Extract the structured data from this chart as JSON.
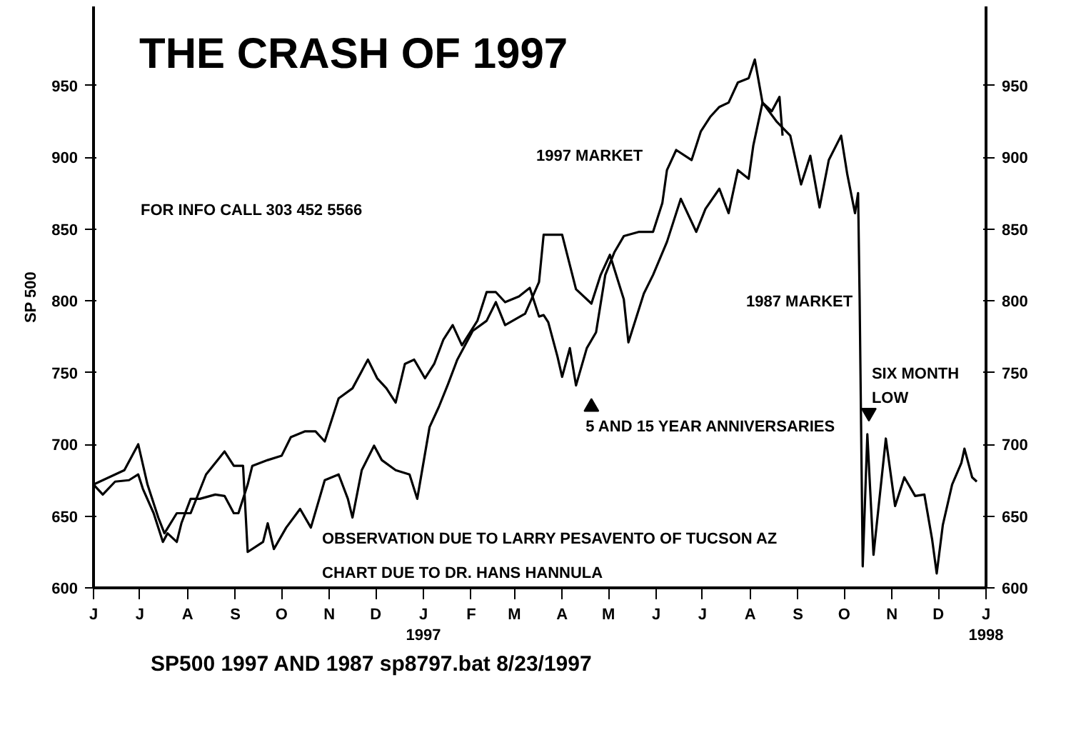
{
  "chart_data": {
    "type": "line",
    "title": "THE CRASH OF 1997",
    "ylabel": "SP 500",
    "xlim": [
      "1996-06-01",
      "1998-01-01"
    ],
    "xticks": [
      {
        "value": "1996-06-01",
        "label": "J"
      },
      {
        "value": "1996-07-01",
        "label": "J"
      },
      {
        "value": "1996-08-01",
        "label": "A"
      },
      {
        "value": "1996-09-01",
        "label": "S"
      },
      {
        "value": "1996-10-01",
        "label": "O"
      },
      {
        "value": "1996-11-01",
        "label": "N"
      },
      {
        "value": "1996-12-01",
        "label": "D"
      },
      {
        "value": "1997-01-01",
        "label": "J\n1997"
      },
      {
        "value": "1997-02-01",
        "label": "F"
      },
      {
        "value": "1997-03-01",
        "label": "M"
      },
      {
        "value": "1997-04-01",
        "label": "A"
      },
      {
        "value": "1997-05-01",
        "label": "M"
      },
      {
        "value": "1997-06-01",
        "label": "J"
      },
      {
        "value": "1997-07-01",
        "label": "J"
      },
      {
        "value": "1997-08-01",
        "label": "A"
      },
      {
        "value": "1997-09-01",
        "label": "S"
      },
      {
        "value": "1997-10-01",
        "label": "O"
      },
      {
        "value": "1997-11-01",
        "label": "N"
      },
      {
        "value": "1997-12-01",
        "label": "D"
      },
      {
        "value": "1998-01-01",
        "label": "J\n1998"
      }
    ],
    "ylim": [
      600,
      1005
    ],
    "yticks": [
      600,
      650,
      700,
      750,
      800,
      850,
      900,
      950
    ],
    "y2lim": [
      600,
      1005
    ],
    "y2ticks": [
      600,
      650,
      700,
      750,
      800,
      850,
      900,
      950
    ],
    "grid": false,
    "legend": false,
    "line_style": "solid",
    "series": [
      {
        "name": "1997 MARKET",
        "color": "#000000",
        "x": [
          "1996-06-01",
          "1996-06-07",
          "1996-06-15",
          "1996-06-24",
          "1996-06-30",
          "1996-07-03",
          "1996-07-10",
          "1996-07-16",
          "1996-07-19",
          "1996-07-25",
          "1996-07-28",
          "1996-08-03",
          "1996-08-09",
          "1996-08-19",
          "1996-08-25",
          "1996-08-31",
          "1996-09-03",
          "1996-09-09",
          "1996-09-12",
          "1996-09-22",
          "1996-10-01",
          "1996-10-07",
          "1996-10-16",
          "1996-10-23",
          "1996-10-29",
          "1996-11-07",
          "1996-11-16",
          "1996-11-26",
          "1996-12-02",
          "1996-12-08",
          "1996-12-14",
          "1996-12-20",
          "1996-12-26",
          "1997-01-02",
          "1997-01-08",
          "1997-01-14",
          "1997-01-20",
          "1997-01-26",
          "1997-02-05",
          "1997-02-11",
          "1997-02-17",
          "1997-02-23",
          "1997-03-04",
          "1997-03-11",
          "1997-03-17",
          "1997-03-20",
          "1997-03-23",
          "1997-03-29",
          "1997-04-01",
          "1997-04-06",
          "1997-04-10",
          "1997-04-17",
          "1997-04-23",
          "1997-04-29",
          "1997-05-05",
          "1997-05-11",
          "1997-05-21",
          "1997-05-30",
          "1997-06-05",
          "1997-06-08",
          "1997-06-14",
          "1997-06-24",
          "1997-06-30",
          "1997-07-06",
          "1997-07-12",
          "1997-07-18",
          "1997-07-24",
          "1997-07-31",
          "1997-08-04",
          "1997-08-09",
          "1997-08-15",
          "1997-08-20",
          "1997-08-22"
        ],
        "values": [
          672,
          665,
          674,
          675,
          679,
          669,
          652,
          632,
          638,
          632,
          645,
          662,
          662,
          665,
          664,
          652,
          652,
          672,
          685,
          689,
          692,
          705,
          709,
          709,
          702,
          732,
          739,
          759,
          746,
          739,
          729,
          756,
          759,
          746,
          756,
          773,
          783,
          769,
          786,
          806,
          806,
          799,
          803,
          809,
          789,
          790,
          785,
          761,
          747,
          767,
          741,
          767,
          778,
          818,
          834,
          845,
          848,
          848,
          868,
          891,
          905,
          898,
          918,
          928,
          935,
          938,
          952,
          955,
          968,
          938,
          932,
          942,
          915
        ]
      },
      {
        "name": "1987 MARKET",
        "color": "#000000",
        "x": [
          "1996-06-01",
          "1996-06-21",
          "1996-06-30",
          "1996-07-06",
          "1996-07-13",
          "1996-07-17",
          "1996-07-25",
          "1996-08-03",
          "1996-08-13",
          "1996-08-25",
          "1996-08-31",
          "1996-09-06",
          "1996-09-09",
          "1996-09-19",
          "1996-09-22",
          "1996-09-26",
          "1996-10-04",
          "1996-10-13",
          "1996-10-20",
          "1996-10-29",
          "1996-11-07",
          "1996-11-13",
          "1996-11-16",
          "1996-11-22",
          "1996-11-30",
          "1996-12-05",
          "1996-12-14",
          "1996-12-23",
          "1996-12-28",
          "1997-01-05",
          "1997-01-11",
          "1997-01-17",
          "1997-01-23",
          "1997-02-02",
          "1997-02-11",
          "1997-02-17",
          "1997-02-23",
          "1997-03-08",
          "1997-03-17",
          "1997-03-20",
          "1997-04-01",
          "1997-04-10",
          "1997-04-20",
          "1997-04-26",
          "1997-05-02",
          "1997-05-11",
          "1997-05-14",
          "1997-05-24",
          "1997-05-30",
          "1997-06-08",
          "1997-06-17",
          "1997-06-27",
          "1997-07-03",
          "1997-07-12",
          "1997-07-18",
          "1997-07-24",
          "1997-07-31",
          "1997-08-03",
          "1997-08-09",
          "1997-08-18",
          "1997-08-27",
          "1997-09-03",
          "1997-09-09",
          "1997-09-15",
          "1997-09-21",
          "1997-09-29",
          "1997-10-03",
          "1997-10-08",
          "1997-10-10",
          "1997-10-11",
          "1997-10-13",
          "1997-10-16",
          "1997-10-20",
          "1997-10-28",
          "1997-11-03",
          "1997-11-09",
          "1997-11-16",
          "1997-11-22",
          "1997-11-27",
          "1997-11-30",
          "1997-12-04",
          "1997-12-10",
          "1997-12-16",
          "1997-12-18",
          "1997-12-23",
          "1997-12-26"
        ],
        "values": [
          672,
          682,
          700,
          672,
          649,
          638,
          652,
          652,
          679,
          695,
          685,
          685,
          625,
          632,
          645,
          627,
          642,
          655,
          642,
          675,
          679,
          662,
          649,
          682,
          699,
          689,
          682,
          679,
          662,
          712,
          726,
          742,
          759,
          779,
          786,
          799,
          783,
          791,
          813,
          846,
          846,
          808,
          798,
          818,
          832,
          801,
          771,
          805,
          818,
          841,
          871,
          848,
          864,
          878,
          861,
          891,
          885,
          908,
          938,
          925,
          915,
          881,
          901,
          865,
          898,
          915,
          888,
          861,
          875,
          801,
          615,
          707,
          623,
          704,
          657,
          677,
          664,
          665,
          634,
          610,
          644,
          672,
          687,
          697,
          677,
          674
        ]
      }
    ],
    "annotations": [
      "FOR INFO CALL 303 452 5566",
      "OBSERVATION DUE TO LARRY PESAVENTO OF TUCSON AZ",
      "CHART DUE TO DR. HANS HANNULA",
      "SP500  1997 AND 1987     sp8797.bat     8/23/1997",
      {
        "text": "5 AND 15 YEAR ANNIVERSARIES",
        "x": "1997-04-20",
        "y": 726
      },
      {
        "text": "SIX MONTH\nLOW",
        "x": "1997-10-17",
        "y": 722
      }
    ]
  }
}
